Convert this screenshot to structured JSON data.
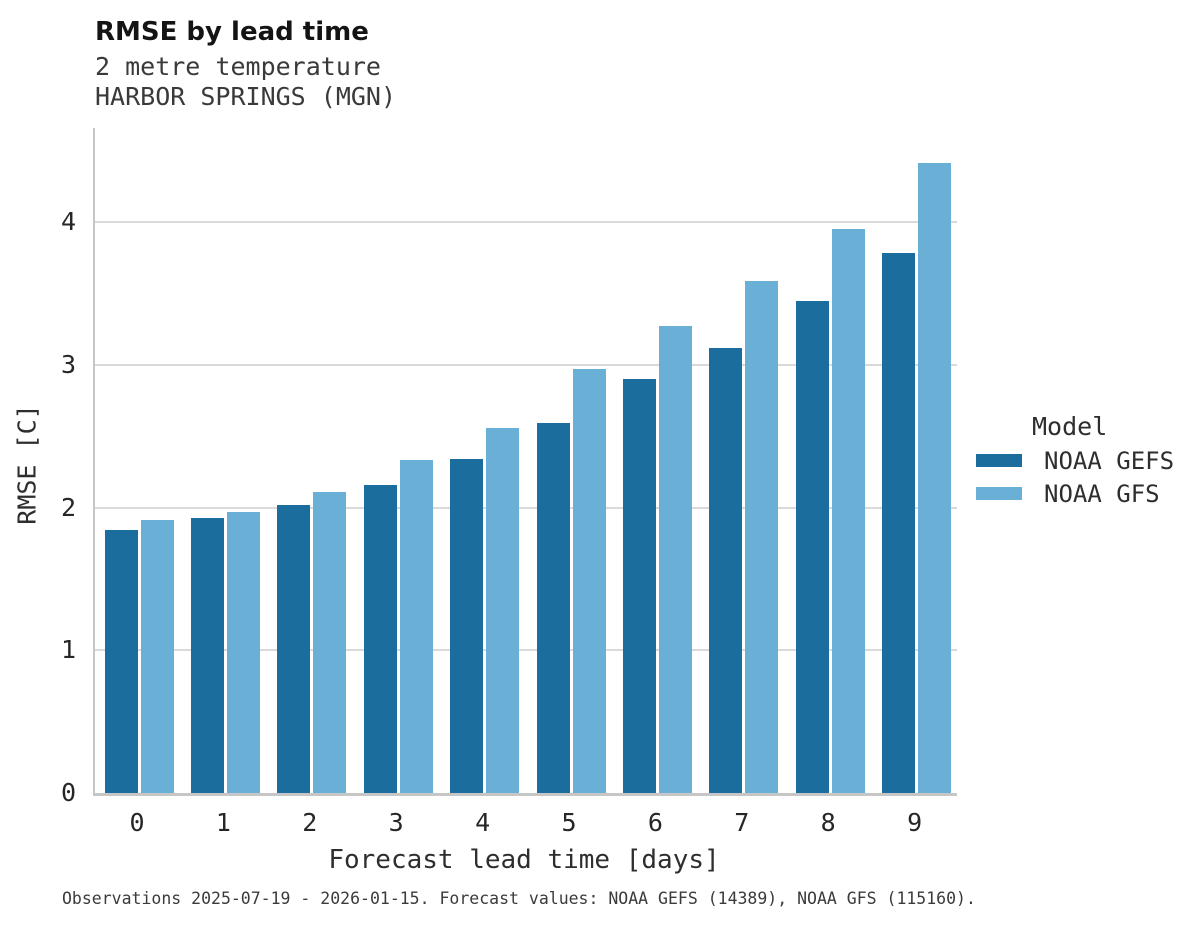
{
  "header": {
    "title": "RMSE by lead time",
    "subtitle1": "2 metre temperature",
    "subtitle2": "HARBOR SPRINGS (MGN)"
  },
  "legend": {
    "title": "Model"
  },
  "caption": {
    "text": "Observations 2025-07-19 - 2026-01-15. Forecast values: NOAA GEFS (14389), NOAA GFS (115160)."
  },
  "chart_data": {
    "type": "bar",
    "title": "RMSE by lead time",
    "subtitle": "2 metre temperature",
    "location": "HARBOR SPRINGS (MGN)",
    "xlabel": "Forecast lead time [days]",
    "ylabel": "RMSE [C]",
    "categories": [
      "0",
      "1",
      "2",
      "3",
      "4",
      "5",
      "6",
      "7",
      "8",
      "9"
    ],
    "series": [
      {
        "name": "NOAA GEFS",
        "color": "#1b6d9d",
        "values": [
          1.84,
          1.93,
          2.02,
          2.16,
          2.34,
          2.59,
          2.9,
          3.12,
          3.45,
          3.78
        ]
      },
      {
        "name": "NOAA GFS",
        "color": "#6aafd6",
        "values": [
          1.91,
          1.97,
          2.11,
          2.33,
          2.56,
          2.97,
          3.27,
          3.59,
          3.95,
          4.41
        ]
      }
    ],
    "ylim": [
      0,
      4.66
    ],
    "yticks": [
      0,
      1,
      2,
      3,
      4
    ],
    "grid": true,
    "legend_title": "Model",
    "legend_position": "right"
  }
}
